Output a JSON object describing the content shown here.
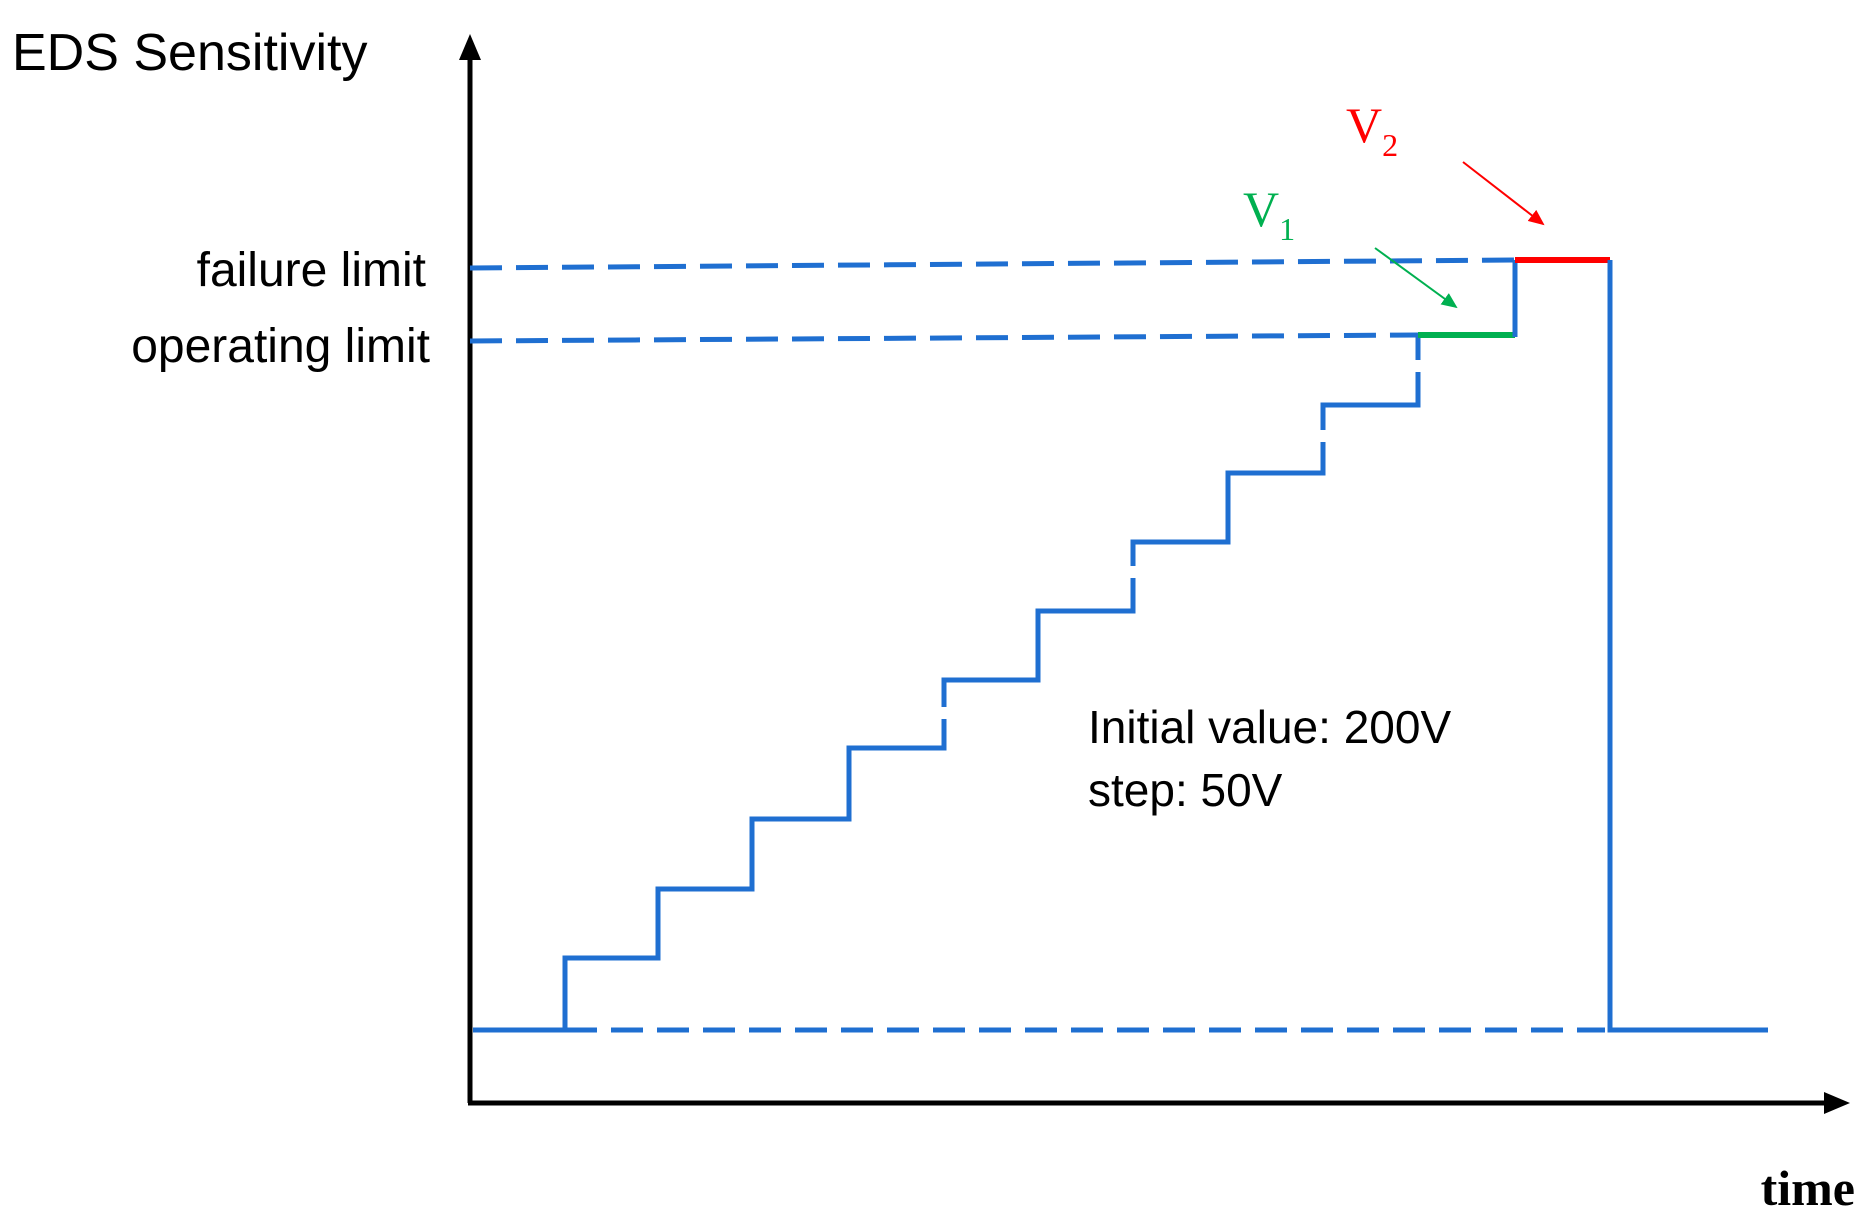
{
  "y_axis_label": "EDS Sensitivity",
  "x_axis_label": "time",
  "levels": {
    "failure": "failure limit",
    "operating": "operating limit"
  },
  "annotation": {
    "line1": "Initial value: 200V",
    "line2": "step: 50V"
  },
  "markers": {
    "v1": {
      "letter": "V",
      "subscript": "1",
      "color": "#00b050"
    },
    "v2": {
      "letter": "V",
      "subscript": "2",
      "color": "#ff0000"
    }
  },
  "colors": {
    "staircase": "#1f6fd1",
    "axes": "#000000"
  }
}
